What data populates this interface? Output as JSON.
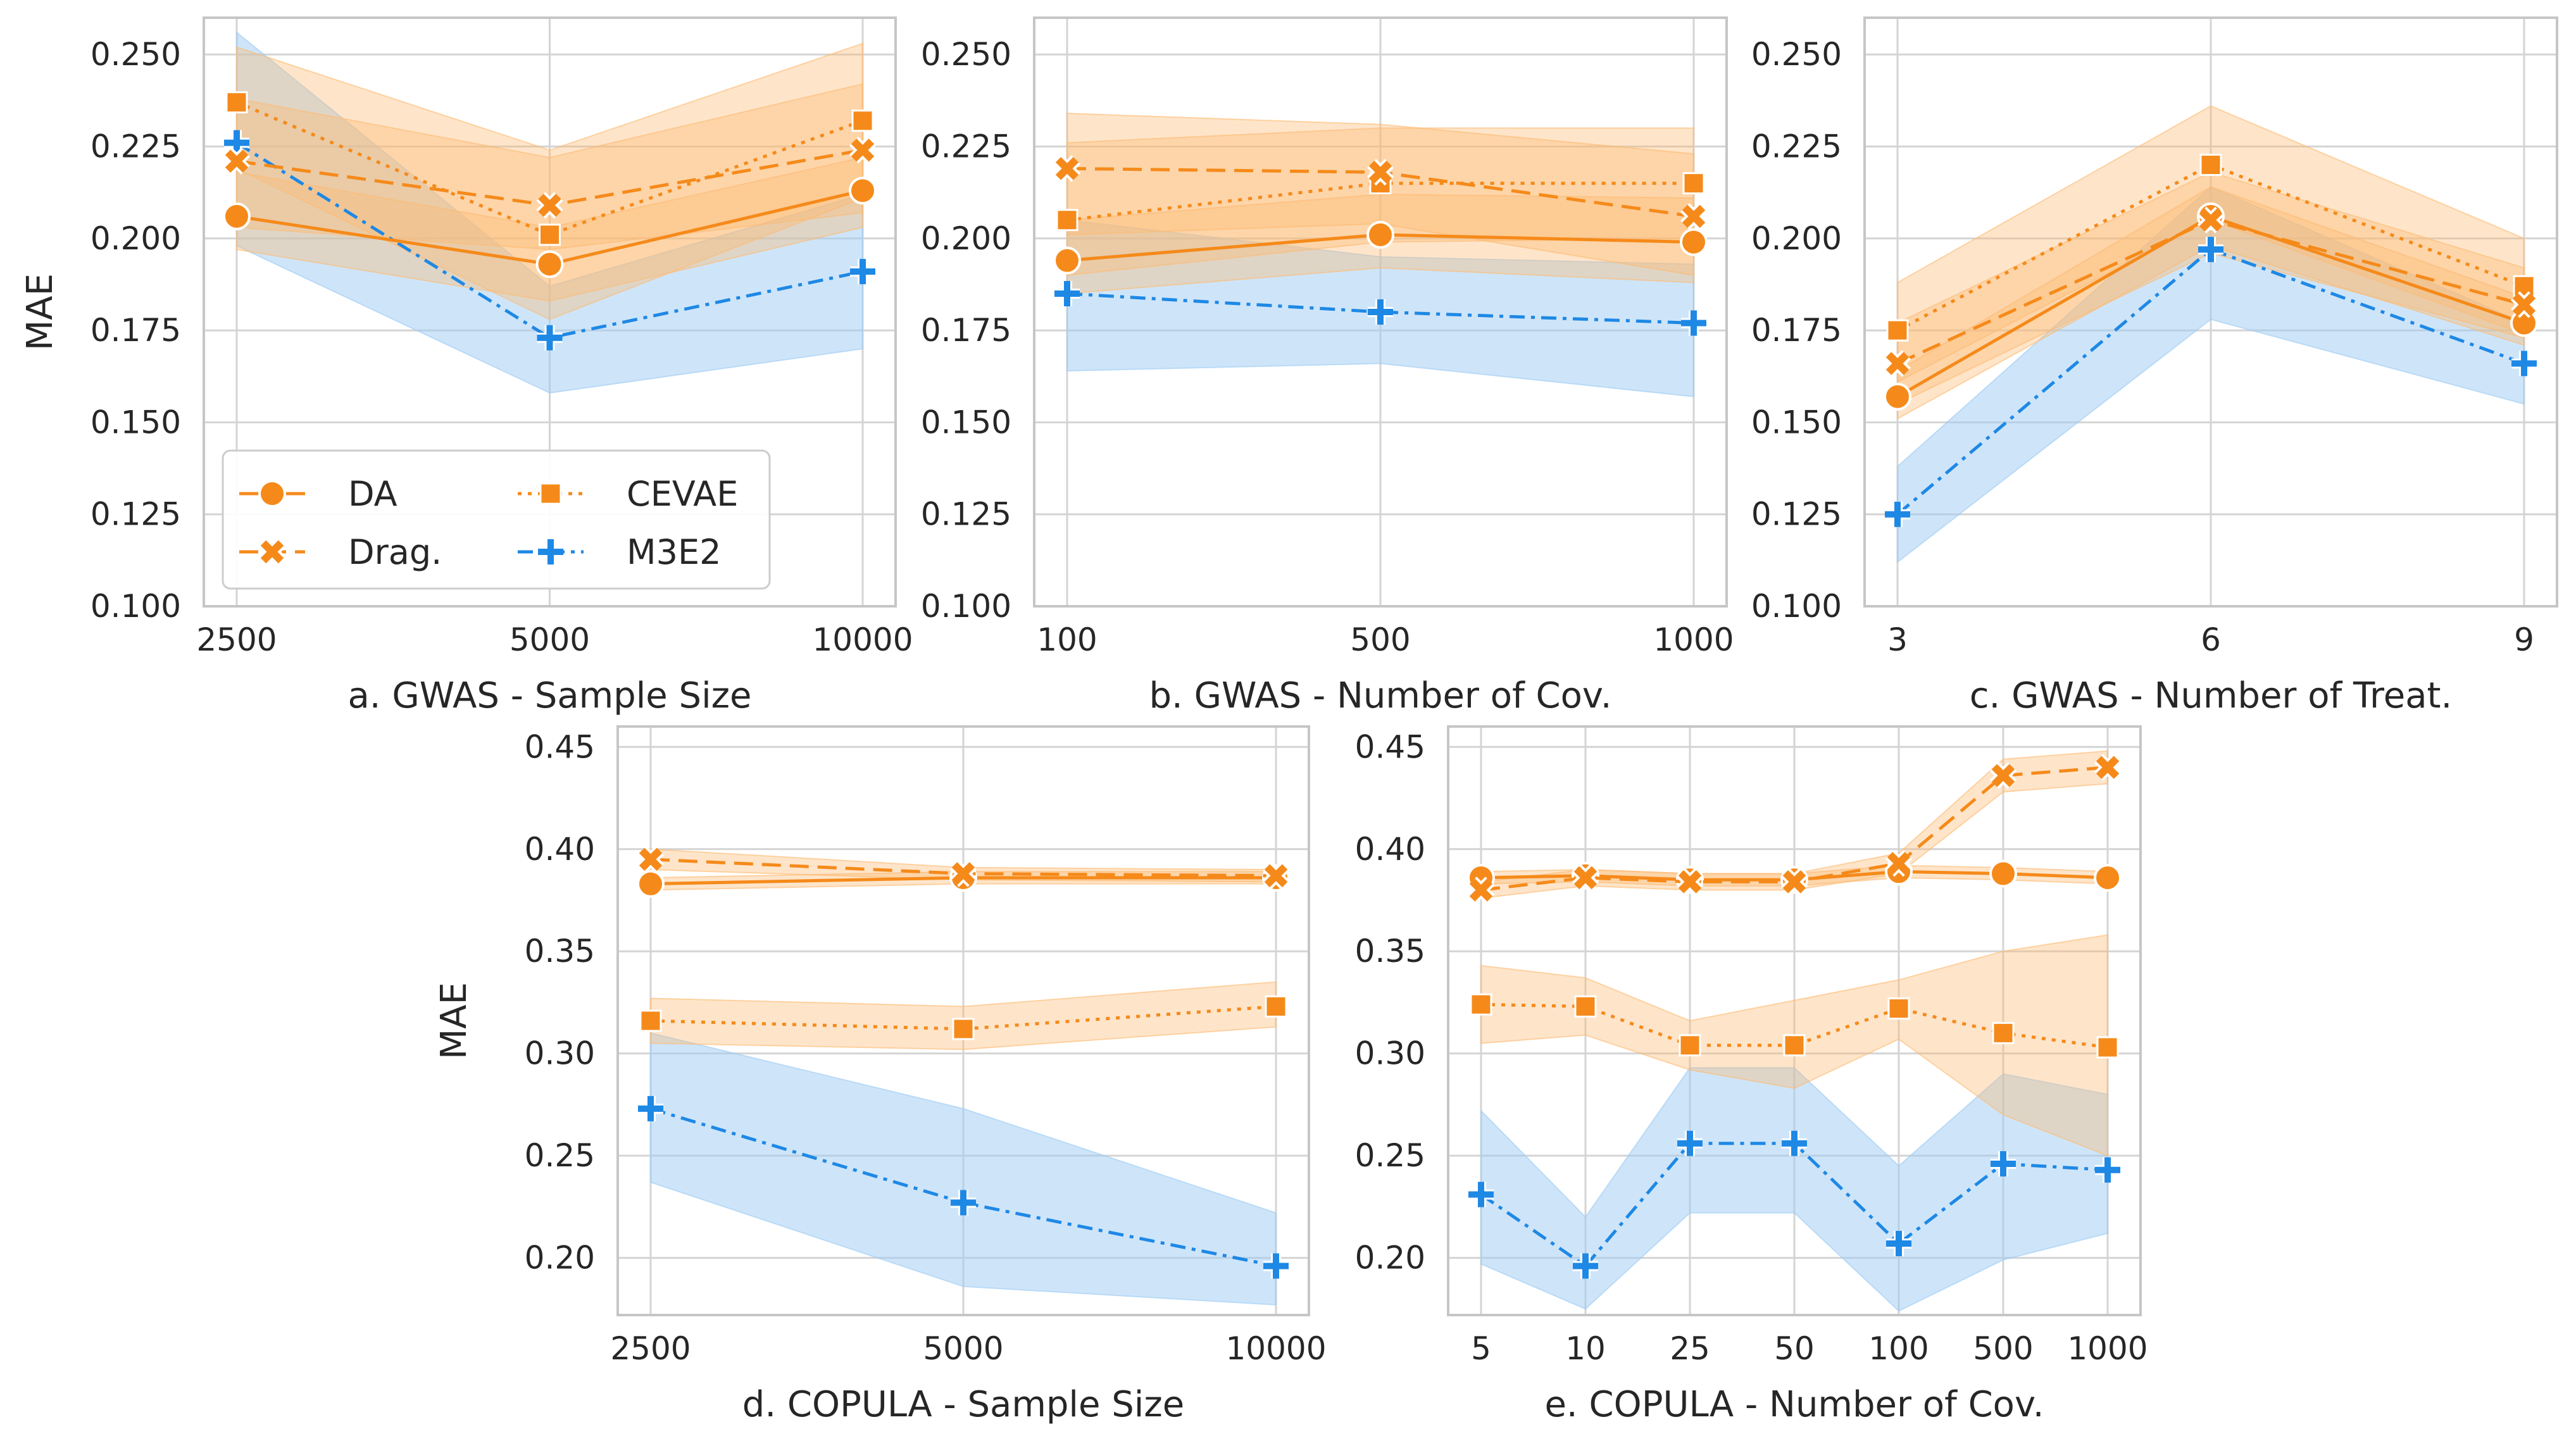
{
  "colors": {
    "DA": "#f58a1a",
    "Drag.": "#f58a1a",
    "CEVAE": "#f58a1a",
    "M3E2": "#1e88e5",
    "band_orange": "#fdbb73",
    "band_blue": "#9ecbf3",
    "grid": "#d4d4d4",
    "frame": "#c6c6c6"
  },
  "legend": {
    "entries": [
      {
        "label": "DA",
        "marker": "circle",
        "dash": "solid"
      },
      {
        "label": "Drag.",
        "marker": "x",
        "dash": "dashed"
      },
      {
        "label": "CEVAE",
        "marker": "square",
        "dash": "dotted"
      },
      {
        "label": "M3E2",
        "marker": "plus",
        "dash": "dashdot"
      }
    ],
    "placement": "lower-left of panel a"
  },
  "chart_data": [
    {
      "type": "line",
      "xlabel": "a. GWAS - Sample Size",
      "ylabel": "MAE",
      "categories": [
        "2500",
        "5000",
        "10000"
      ],
      "ylim": [
        0.1,
        0.26
      ],
      "yticks": [
        0.1,
        0.125,
        0.15,
        0.175,
        0.2,
        0.225,
        0.25
      ],
      "ytick_labels": [
        "0.100",
        "0.125",
        "0.150",
        "0.175",
        "0.200",
        "0.225",
        "0.250"
      ],
      "grid": true,
      "series": [
        {
          "name": "DA",
          "values": [
            0.206,
            0.193,
            0.213
          ],
          "lower": [
            0.197,
            0.183,
            0.203
          ],
          "upper": [
            0.218,
            0.203,
            0.222
          ]
        },
        {
          "name": "Drag.",
          "values": [
            0.221,
            0.209,
            0.224
          ],
          "lower": [
            0.203,
            0.197,
            0.207
          ],
          "upper": [
            0.238,
            0.222,
            0.242
          ]
        },
        {
          "name": "CEVAE",
          "values": [
            0.237,
            0.201,
            0.232
          ],
          "lower": [
            0.219,
            0.178,
            0.211
          ],
          "upper": [
            0.252,
            0.224,
            0.253
          ]
        },
        {
          "name": "M3E2",
          "values": [
            0.226,
            0.173,
            0.191
          ],
          "lower": [
            0.198,
            0.158,
            0.17
          ],
          "upper": [
            0.256,
            0.187,
            0.212
          ]
        }
      ]
    },
    {
      "type": "line",
      "xlabel": "b. GWAS - Number of Cov.",
      "ylabel": "",
      "categories": [
        "100",
        "500",
        "1000"
      ],
      "ylim": [
        0.1,
        0.26
      ],
      "yticks": [
        0.1,
        0.125,
        0.15,
        0.175,
        0.2,
        0.225,
        0.25
      ],
      "ytick_labels": [
        "0.100",
        "0.125",
        "0.150",
        "0.175",
        "0.200",
        "0.225",
        "0.250"
      ],
      "grid": true,
      "series": [
        {
          "name": "DA",
          "values": [
            0.194,
            0.201,
            0.199
          ],
          "lower": [
            0.185,
            0.192,
            0.188
          ],
          "upper": [
            0.205,
            0.212,
            0.211
          ]
        },
        {
          "name": "Drag.",
          "values": [
            0.219,
            0.218,
            0.206
          ],
          "lower": [
            0.201,
            0.204,
            0.19
          ],
          "upper": [
            0.234,
            0.231,
            0.223
          ]
        },
        {
          "name": "CEVAE",
          "values": [
            0.205,
            0.215,
            0.215
          ],
          "lower": [
            0.19,
            0.199,
            0.2
          ],
          "upper": [
            0.226,
            0.23,
            0.23
          ]
        },
        {
          "name": "M3E2",
          "values": [
            0.185,
            0.18,
            0.177
          ],
          "lower": [
            0.164,
            0.166,
            0.157
          ],
          "upper": [
            0.205,
            0.195,
            0.193
          ]
        }
      ]
    },
    {
      "type": "line",
      "xlabel": "c. GWAS - Number of Treat.",
      "ylabel": "",
      "categories": [
        "3",
        "6",
        "9"
      ],
      "ylim": [
        0.1,
        0.26
      ],
      "yticks": [
        0.1,
        0.125,
        0.15,
        0.175,
        0.2,
        0.225,
        0.25
      ],
      "ytick_labels": [
        "0.100",
        "0.125",
        "0.150",
        "0.175",
        "0.200",
        "0.225",
        "0.250"
      ],
      "grid": true,
      "series": [
        {
          "name": "DA",
          "values": [
            0.157,
            0.206,
            0.177
          ],
          "lower": [
            0.151,
            0.198,
            0.171
          ],
          "upper": [
            0.164,
            0.214,
            0.184
          ]
        },
        {
          "name": "Drag.",
          "values": [
            0.166,
            0.205,
            0.182
          ],
          "lower": [
            0.155,
            0.196,
            0.173
          ],
          "upper": [
            0.177,
            0.218,
            0.192
          ]
        },
        {
          "name": "CEVAE",
          "values": [
            0.175,
            0.22,
            0.187
          ],
          "lower": [
            0.161,
            0.205,
            0.174
          ],
          "upper": [
            0.188,
            0.236,
            0.2
          ]
        },
        {
          "name": "M3E2",
          "values": [
            0.125,
            0.197,
            0.166
          ],
          "lower": [
            0.112,
            0.178,
            0.155
          ],
          "upper": [
            0.138,
            0.214,
            0.177
          ]
        }
      ]
    },
    {
      "type": "line",
      "xlabel": "d. COPULA - Sample Size",
      "ylabel": "MAE",
      "categories": [
        "2500",
        "5000",
        "10000"
      ],
      "ylim": [
        0.172,
        0.46
      ],
      "yticks": [
        0.2,
        0.25,
        0.3,
        0.35,
        0.4,
        0.45
      ],
      "ytick_labels": [
        "0.20",
        "0.25",
        "0.30",
        "0.35",
        "0.40",
        "0.45"
      ],
      "grid": true,
      "series": [
        {
          "name": "DA",
          "values": [
            0.383,
            0.386,
            0.386
          ],
          "lower": [
            0.38,
            0.383,
            0.383
          ],
          "upper": [
            0.386,
            0.389,
            0.389
          ]
        },
        {
          "name": "Drag.",
          "values": [
            0.395,
            0.388,
            0.387
          ],
          "lower": [
            0.39,
            0.385,
            0.384
          ],
          "upper": [
            0.4,
            0.391,
            0.39
          ]
        },
        {
          "name": "CEVAE",
          "values": [
            0.316,
            0.312,
            0.323
          ],
          "lower": [
            0.305,
            0.302,
            0.313
          ],
          "upper": [
            0.327,
            0.323,
            0.335
          ]
        },
        {
          "name": "M3E2",
          "values": [
            0.273,
            0.227,
            0.196
          ],
          "lower": [
            0.237,
            0.186,
            0.177
          ],
          "upper": [
            0.31,
            0.273,
            0.222
          ]
        }
      ]
    },
    {
      "type": "line",
      "xlabel": "e. COPULA - Number of Cov.",
      "ylabel": "",
      "categories": [
        "5",
        "10",
        "25",
        "50",
        "100",
        "500",
        "1000"
      ],
      "ylim": [
        0.172,
        0.46
      ],
      "yticks": [
        0.2,
        0.25,
        0.3,
        0.35,
        0.4,
        0.45
      ],
      "ytick_labels": [
        "0.20",
        "0.25",
        "0.30",
        "0.35",
        "0.40",
        "0.45"
      ],
      "grid": true,
      "series": [
        {
          "name": "DA",
          "values": [
            0.386,
            0.387,
            0.385,
            0.385,
            0.389,
            0.388,
            0.386
          ],
          "lower": [
            0.383,
            0.384,
            0.382,
            0.382,
            0.386,
            0.385,
            0.383
          ],
          "upper": [
            0.389,
            0.39,
            0.388,
            0.388,
            0.392,
            0.391,
            0.389
          ]
        },
        {
          "name": "Drag.",
          "values": [
            0.38,
            0.386,
            0.384,
            0.384,
            0.393,
            0.436,
            0.44
          ],
          "lower": [
            0.376,
            0.382,
            0.38,
            0.38,
            0.388,
            0.428,
            0.432
          ],
          "upper": [
            0.384,
            0.39,
            0.388,
            0.388,
            0.398,
            0.444,
            0.448
          ]
        },
        {
          "name": "CEVAE",
          "values": [
            0.324,
            0.323,
            0.304,
            0.304,
            0.322,
            0.31,
            0.303
          ],
          "lower": [
            0.305,
            0.309,
            0.292,
            0.283,
            0.307,
            0.27,
            0.25
          ],
          "upper": [
            0.343,
            0.337,
            0.316,
            0.326,
            0.336,
            0.35,
            0.358
          ]
        },
        {
          "name": "M3E2",
          "values": [
            0.231,
            0.196,
            0.256,
            0.256,
            0.207,
            0.246,
            0.243
          ],
          "lower": [
            0.197,
            0.175,
            0.222,
            0.222,
            0.174,
            0.199,
            0.212
          ],
          "upper": [
            0.272,
            0.22,
            0.293,
            0.293,
            0.245,
            0.29,
            0.28
          ]
        }
      ]
    }
  ]
}
